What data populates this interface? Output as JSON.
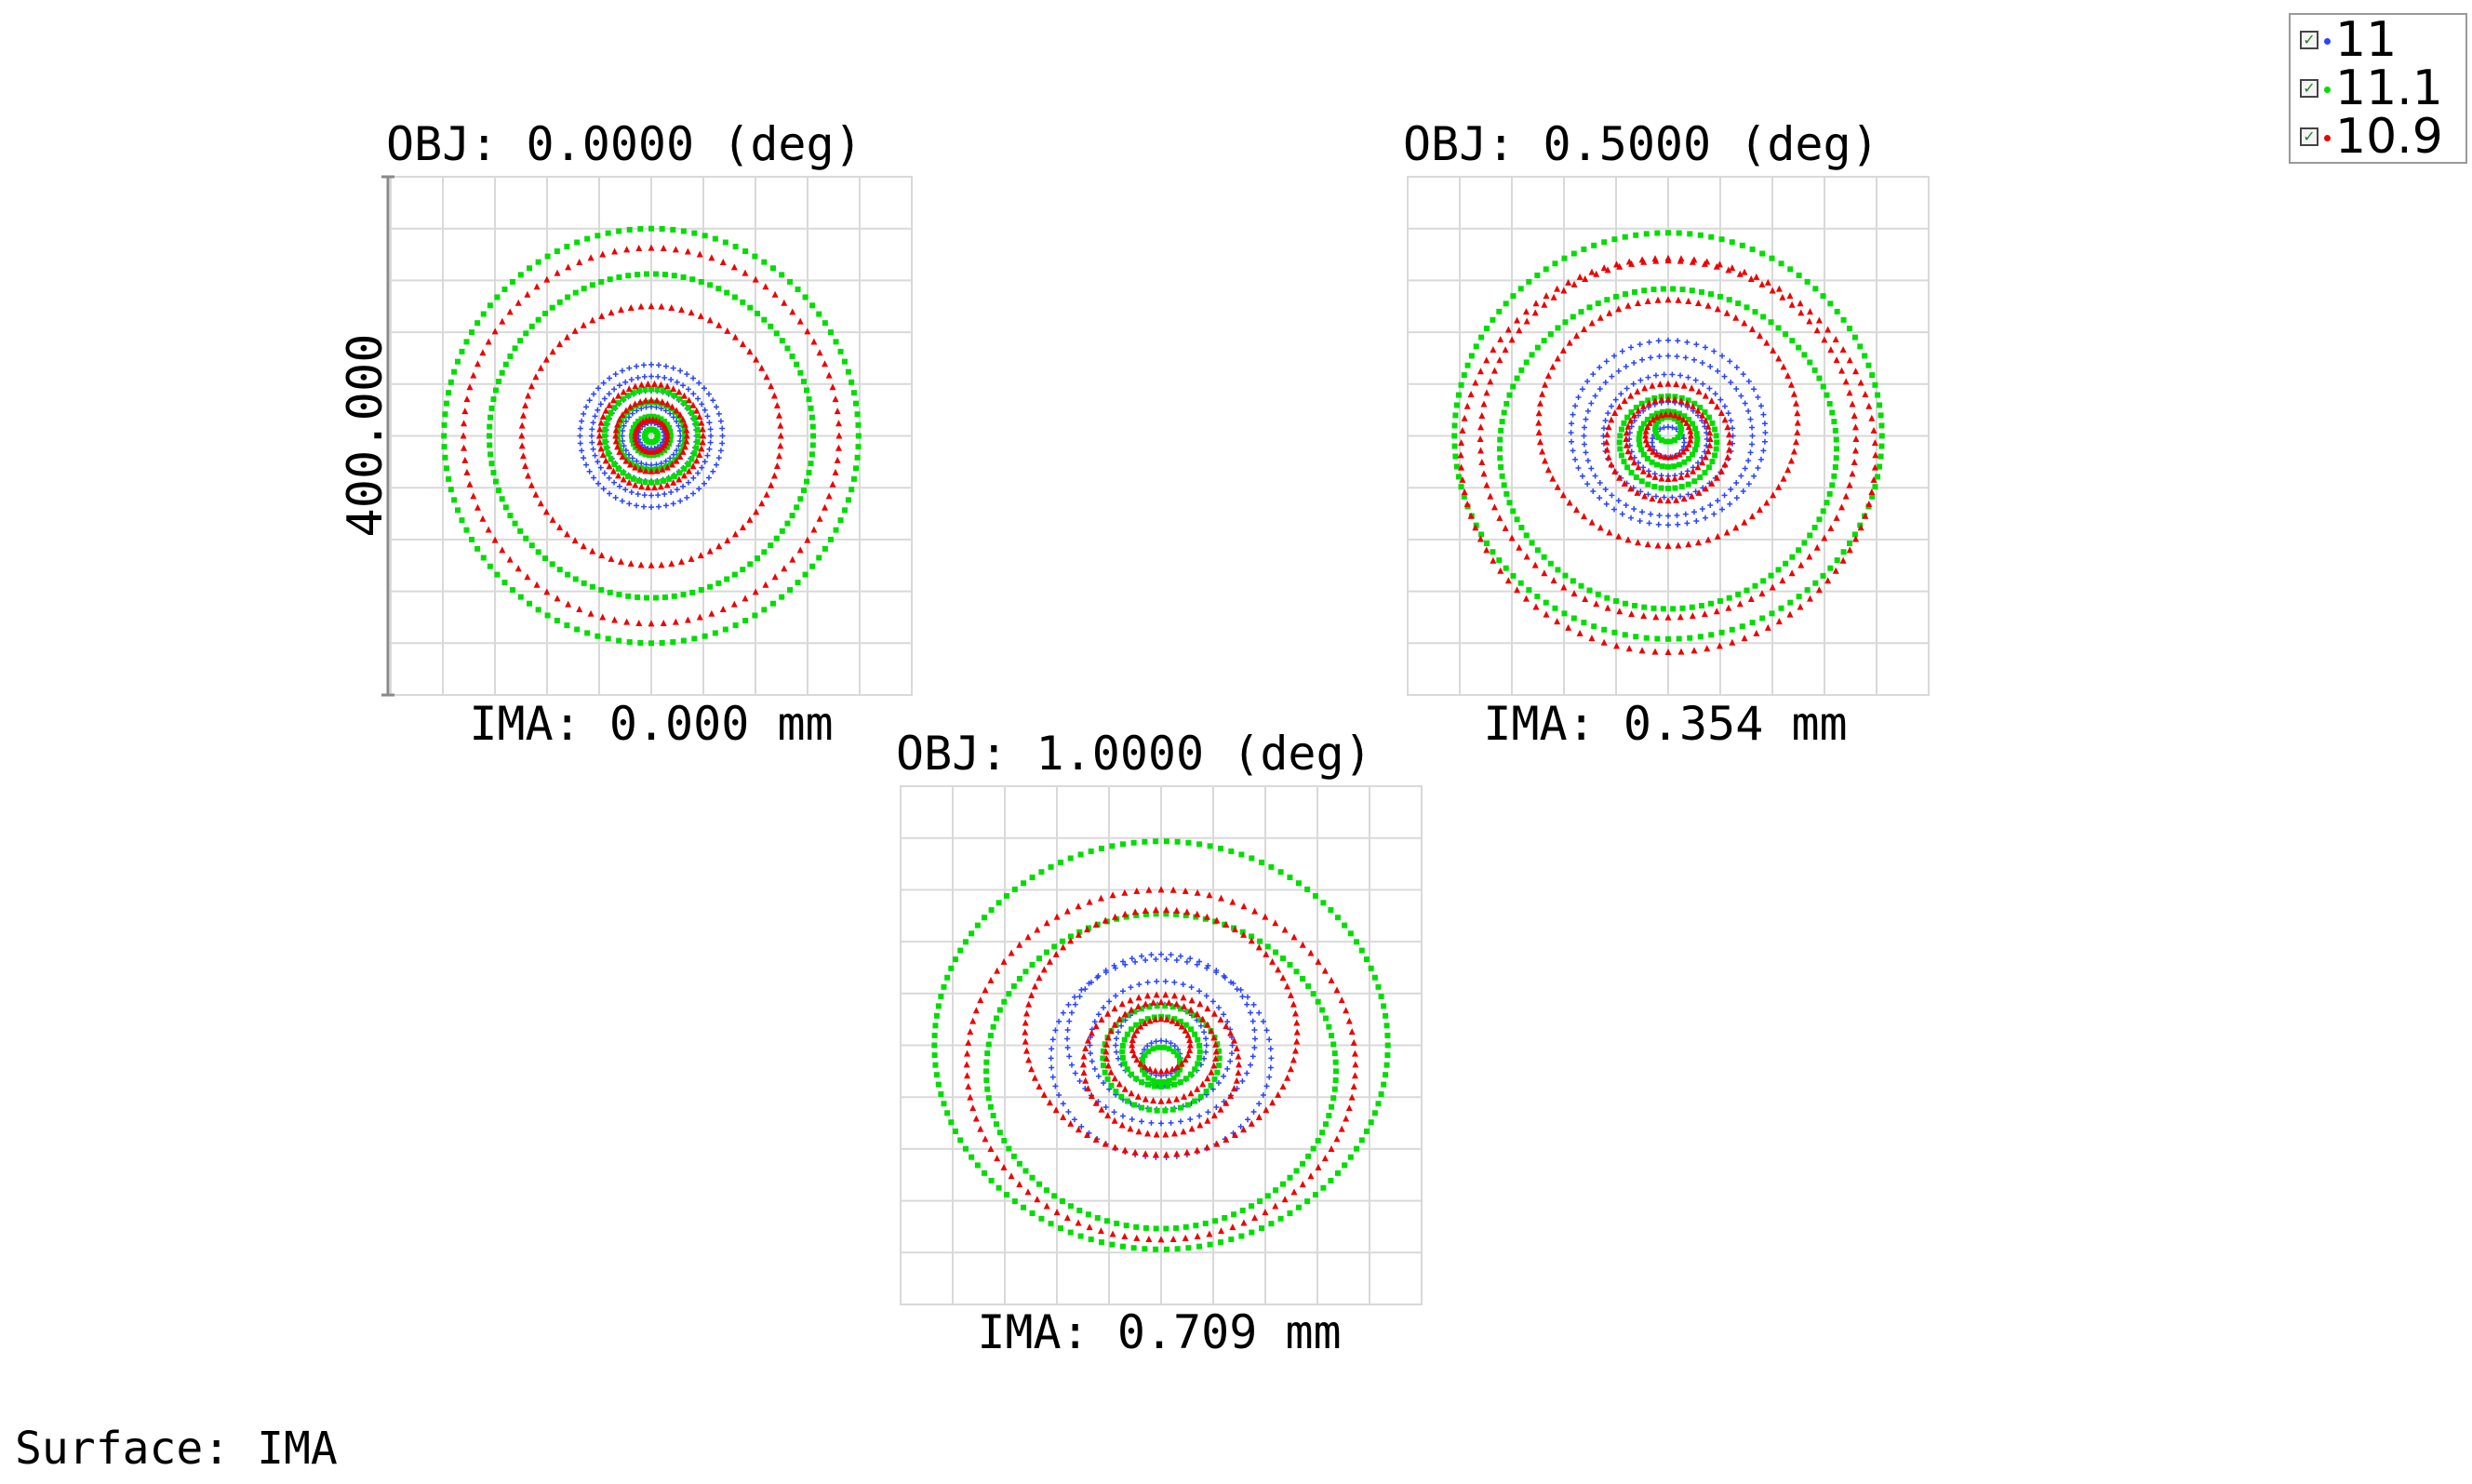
{
  "legend": {
    "items": [
      {
        "label": "11",
        "color": "#1f3fff"
      },
      {
        "label": "11.1",
        "color": "#00dd00"
      },
      {
        "label": "10.9",
        "color": "#ee0000"
      }
    ]
  },
  "surface_label": "Surface: IMA",
  "scale_label": "400.000",
  "chart_data": [
    {
      "type": "scatter",
      "title": "OBJ: 0.0000 (deg)",
      "xlabel": "IMA: 0.000 mm",
      "field_angle_deg": 0.0,
      "image_height_mm": 0.0,
      "scale_bar_um": 400.0,
      "grid_divisions": 10,
      "series": [
        {
          "name": "11",
          "color": "#2a44ff",
          "marker": "+",
          "rings": [
            {
              "r": 20,
              "dy": 0,
              "n": 24
            },
            {
              "r": 45,
              "dy": 0,
              "n": 36
            },
            {
              "r": 70,
              "dy": 0,
              "n": 48
            },
            {
              "r": 92,
              "dy": 0,
              "n": 56
            },
            {
              "r": 110,
              "dy": 0,
              "n": 60
            }
          ]
        },
        {
          "name": "11.1",
          "color": "#00dd00",
          "marker": "square",
          "rings": [
            {
              "r": 10,
              "dy": 0,
              "n": 16
            },
            {
              "r": 30,
              "dy": 0,
              "n": 30
            },
            {
              "r": 52,
              "dy": 0,
              "n": 40
            },
            {
              "r": 72,
              "dy": 0,
              "n": 48
            },
            {
              "r": 250,
              "dy": 0,
              "n": 110
            },
            {
              "r": 320,
              "dy": 0,
              "n": 120
            }
          ]
        },
        {
          "name": "10.9",
          "color": "#ee0000",
          "marker": "triangle",
          "rings": [
            {
              "r": 25,
              "dy": 0,
              "n": 30
            },
            {
              "r": 55,
              "dy": 0,
              "n": 40
            },
            {
              "r": 80,
              "dy": 0,
              "n": 50
            },
            {
              "r": 200,
              "dy": 0,
              "n": 80
            },
            {
              "r": 290,
              "dy": 0,
              "n": 96
            }
          ]
        }
      ]
    },
    {
      "type": "scatter",
      "title": "OBJ: 0.5000 (deg)",
      "xlabel": "IMA: 0.354 mm",
      "field_angle_deg": 0.5,
      "image_height_mm": 0.354,
      "scale_bar_um": 400.0,
      "grid_divisions": 10,
      "series": [
        {
          "name": "11",
          "color": "#2a44ff",
          "marker": "+",
          "rings": [
            {
              "r": 25,
              "dy": 10,
              "n": 24
            },
            {
              "r": 60,
              "dy": 5,
              "n": 36
            },
            {
              "r": 100,
              "dy": 0,
              "n": 50
            },
            {
              "r": 130,
              "dy": 0,
              "n": 60
            },
            {
              "r": 150,
              "dy": -5,
              "n": 64
            }
          ]
        },
        {
          "name": "11.1",
          "color": "#00dd00",
          "marker": "square",
          "rings": [
            {
              "r": 20,
              "dy": -10,
              "n": 18
            },
            {
              "r": 45,
              "dy": 5,
              "n": 32
            },
            {
              "r": 75,
              "dy": 10,
              "n": 44
            },
            {
              "r": 260,
              "dy": 20,
              "n": 110
            },
            {
              "r": 330,
              "dy": 0,
              "n": 124
            }
          ]
        },
        {
          "name": "10.9",
          "color": "#ee0000",
          "marker": "triangle",
          "rings": [
            {
              "r": 35,
              "dy": 0,
              "n": 30
            },
            {
              "r": 65,
              "dy": 5,
              "n": 40
            },
            {
              "r": 95,
              "dy": 10,
              "n": 48
            },
            {
              "r": 200,
              "dy": -20,
              "n": 80
            },
            {
              "r": 290,
              "dy": 5,
              "n": 96
            },
            {
              "r": 320,
              "dy": 30,
              "n": 100
            }
          ]
        }
      ]
    },
    {
      "type": "scatter",
      "title": "OBJ: 1.0000 (deg)",
      "xlabel": "IMA: 0.709 mm",
      "field_angle_deg": 1.0,
      "image_height_mm": 0.709,
      "scale_bar_um": 400.0,
      "grid_divisions": 10,
      "series": [
        {
          "name": "11",
          "color": "#2a44ff",
          "marker": "+",
          "rings": [
            {
              "r": 30,
              "dy": 20,
              "n": 24
            },
            {
              "r": 70,
              "dy": 0,
              "n": 38
            },
            {
              "r": 110,
              "dy": 0,
              "n": 50
            },
            {
              "r": 145,
              "dy": -10,
              "n": 60
            },
            {
              "r": 170,
              "dy": 20,
              "n": 66
            }
          ]
        },
        {
          "name": "11.1",
          "color": "#00dd00",
          "marker": "square",
          "rings": [
            {
              "r": 30,
              "dy": 30,
              "n": 22
            },
            {
              "r": 60,
              "dy": 10,
              "n": 36
            },
            {
              "r": 90,
              "dy": 20,
              "n": 46
            },
            {
              "r": 270,
              "dy": 40,
              "n": 110
            },
            {
              "r": 350,
              "dy": 0,
              "n": 130
            }
          ]
        },
        {
          "name": "10.9",
          "color": "#ee0000",
          "marker": "triangle",
          "rings": [
            {
              "r": 45,
              "dy": 0,
              "n": 32
            },
            {
              "r": 85,
              "dy": 10,
              "n": 44
            },
            {
              "r": 120,
              "dy": 30,
              "n": 54
            },
            {
              "r": 210,
              "dy": -20,
              "n": 82
            },
            {
              "r": 300,
              "dy": 30,
              "n": 100
            }
          ]
        }
      ]
    }
  ]
}
